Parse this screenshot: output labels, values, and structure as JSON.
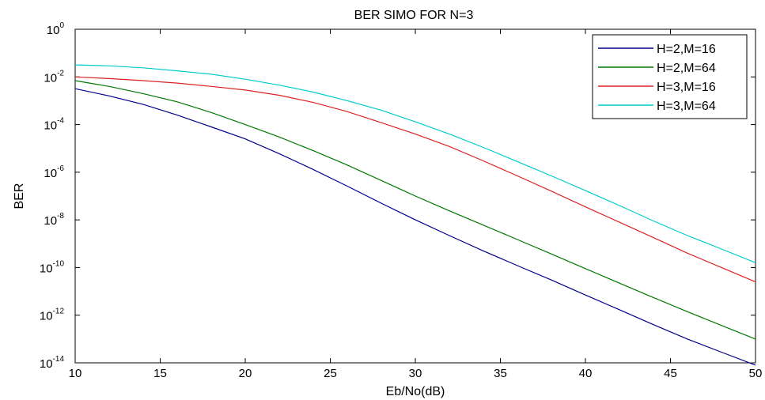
{
  "chart_data": {
    "type": "line",
    "title": "BER SIMO FOR N=3",
    "xlabel": "Eb/No(dB)",
    "ylabel": "BER",
    "xlim": [
      10,
      50
    ],
    "ylim": [
      1e-14,
      1
    ],
    "y_scale": "log",
    "grid": false,
    "legend_position": "top-right",
    "x_ticks": [
      10,
      15,
      20,
      25,
      30,
      35,
      40,
      45,
      50
    ],
    "x_tick_labels": [
      "10",
      "15",
      "20",
      "25",
      "30",
      "35",
      "40",
      "45",
      "50"
    ],
    "y_ticks": [
      {
        "value": 1,
        "base": "10",
        "exp": "0"
      },
      {
        "value": 0.01,
        "base": "10",
        "exp": "-2"
      },
      {
        "value": 0.0001,
        "base": "10",
        "exp": "-4"
      },
      {
        "value": 1e-06,
        "base": "10",
        "exp": "-6"
      },
      {
        "value": 1e-08,
        "base": "10",
        "exp": "-8"
      },
      {
        "value": 1e-10,
        "base": "10",
        "exp": "-10"
      },
      {
        "value": 1e-12,
        "base": "10",
        "exp": "-12"
      },
      {
        "value": 1e-14,
        "base": "10",
        "exp": "-14"
      }
    ],
    "x": [
      10,
      12,
      14,
      16,
      18,
      20,
      22,
      24,
      26,
      28,
      30,
      32,
      34,
      36,
      38,
      40,
      42,
      44,
      46,
      48,
      50
    ],
    "series": [
      {
        "name": "H=2,M=16",
        "color": "#00008b",
        "values": [
          0.0032,
          0.0016,
          0.0007,
          0.00025,
          8e-05,
          2.5e-05,
          6e-06,
          1.3e-06,
          2.6e-07,
          5e-08,
          1e-08,
          2.2e-09,
          5e-10,
          1.2e-10,
          3e-11,
          7e-12,
          1.7e-12,
          4e-13,
          1e-13,
          2.8e-14,
          8e-15
        ]
      },
      {
        "name": "H=2,M=64",
        "color": "#007700",
        "values": [
          0.007,
          0.004,
          0.002,
          0.0009,
          0.00032,
          0.0001,
          3e-05,
          8e-06,
          2e-06,
          4.5e-07,
          1e-07,
          2.4e-08,
          6e-09,
          1.5e-09,
          3.7e-10,
          9e-11,
          2.2e-11,
          5.5e-12,
          1.4e-12,
          3.7e-13,
          1e-13
        ]
      },
      {
        "name": "H=3,M=16",
        "color": "#dd2222",
        "values": [
          0.01,
          0.0085,
          0.007,
          0.0055,
          0.004,
          0.0028,
          0.0017,
          0.00085,
          0.00035,
          0.00012,
          4e-05,
          1.2e-05,
          3e-06,
          7e-07,
          1.6e-07,
          3.5e-08,
          8e-09,
          1.8e-09,
          4e-10,
          1e-10,
          2.5e-11
        ]
      },
      {
        "name": "H=3,M=64",
        "color": "#00cccc",
        "values": [
          0.032,
          0.029,
          0.024,
          0.018,
          0.013,
          0.008,
          0.0045,
          0.0023,
          0.001,
          0.0004,
          0.00013,
          4e-05,
          1.1e-05,
          2.8e-06,
          7e-07,
          1.7e-07,
          4e-08,
          9e-09,
          2.2e-09,
          6e-10,
          1.6e-10
        ]
      }
    ]
  }
}
